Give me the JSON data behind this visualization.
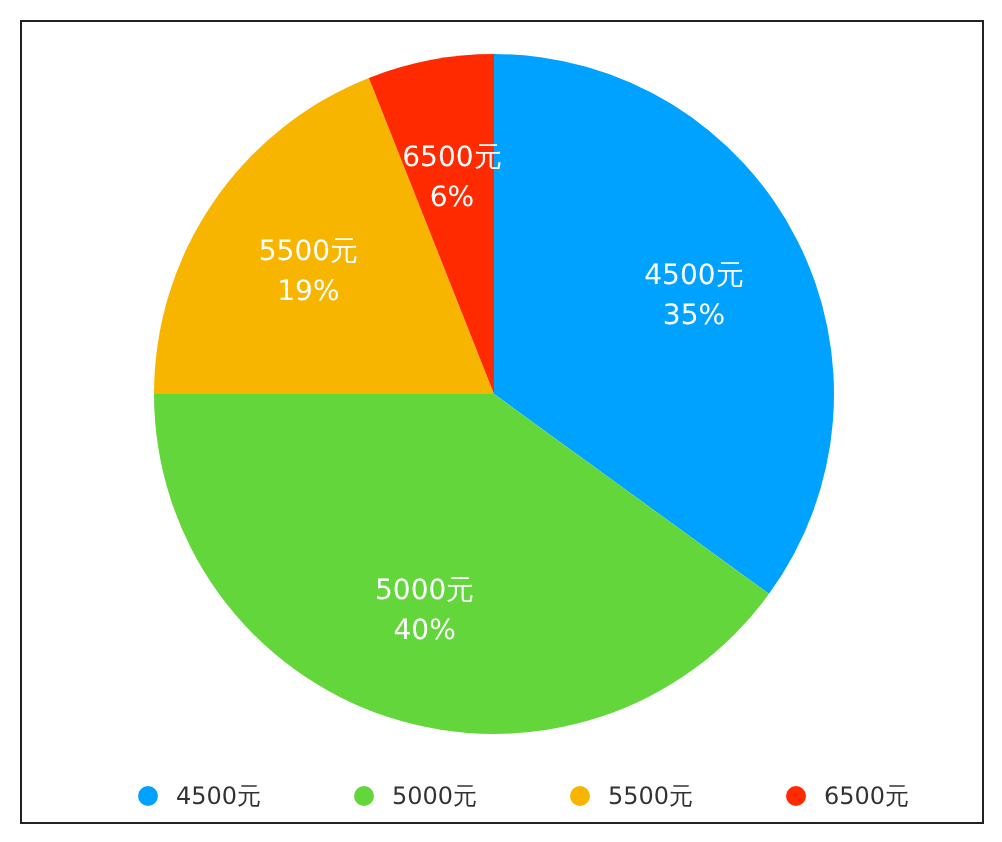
{
  "chart_data": {
    "type": "pie",
    "categories": [
      "4500元",
      "5000元",
      "5500元",
      "6500元"
    ],
    "values": [
      35,
      40,
      19,
      6
    ],
    "colors": [
      "#00a2ff",
      "#62d63a",
      "#f8b500",
      "#ff2a00"
    ],
    "value_labels": [
      "35%",
      "40%",
      "19%",
      "6%"
    ],
    "legend": "bottom"
  }
}
